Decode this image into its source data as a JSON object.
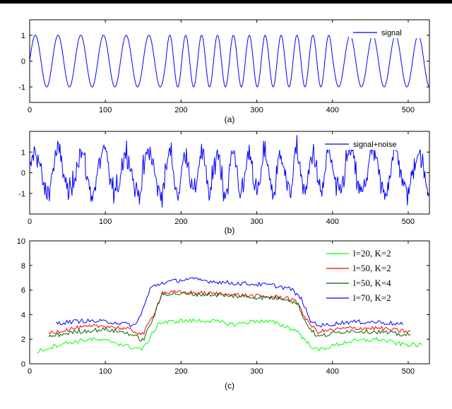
{
  "chart_data": [
    {
      "id": "a",
      "type": "line",
      "caption": "(a)",
      "xlim": [
        0,
        528
      ],
      "ylim": [
        -1.6,
        1.6
      ],
      "xticks": [
        "0",
        "100",
        "200",
        "300",
        "400",
        "500"
      ],
      "yticks": [
        "-1",
        "0",
        "1"
      ],
      "legend_position": "top-right",
      "series": [
        {
          "name": "signal",
          "color": "#0000ff",
          "kind": "sine",
          "amplitude": 1,
          "period_segments": [
            [
              0,
              180,
              30
            ],
            [
              180,
              400,
              21
            ],
            [
              400,
              528,
              30
            ]
          ]
        }
      ]
    },
    {
      "id": "b",
      "type": "line",
      "caption": "(b)",
      "xlim": [
        0,
        528
      ],
      "ylim": [
        -2,
        2
      ],
      "xticks": [
        "0",
        "100",
        "200",
        "300",
        "400",
        "500"
      ],
      "yticks": [
        "-1",
        "0",
        "1"
      ],
      "legend_position": "top-right",
      "series": [
        {
          "name": "signal+noise",
          "color": "#0000ff",
          "kind": "noisy-sine",
          "amplitude": 1,
          "noise_std": 0.45,
          "period_segments": [
            [
              0,
              180,
              30
            ],
            [
              180,
              400,
              21
            ],
            [
              400,
              528,
              30
            ]
          ]
        }
      ]
    },
    {
      "id": "c",
      "type": "line",
      "caption": "(c)",
      "xlim": [
        0,
        528
      ],
      "ylim": [
        0,
        10
      ],
      "xticks": [
        "0",
        "100",
        "200",
        "300",
        "400",
        "500"
      ],
      "yticks": [
        "0",
        "2",
        "4",
        "6",
        "8",
        "10"
      ],
      "legend_position": "top-right",
      "series": [
        {
          "name": "l=20, K=2",
          "color": "#00ff00",
          "x_range": [
            10,
            518
          ],
          "x": [
            10,
            40,
            80,
            110,
            130,
            150,
            160,
            170,
            200,
            240,
            270,
            300,
            320,
            340,
            355,
            365,
            380,
            420,
            460,
            490,
            518
          ],
          "y": [
            1.0,
            1.6,
            2.0,
            1.8,
            1.4,
            1.2,
            2.2,
            3.3,
            3.5,
            3.5,
            3.2,
            3.5,
            3.4,
            3.0,
            2.6,
            1.8,
            1.1,
            1.8,
            2.0,
            1.6,
            1.5
          ]
        },
        {
          "name": "l=50, K=2",
          "color": "#ff0000",
          "x_range": [
            25,
            503
          ],
          "x": [
            25,
            60,
            100,
            130,
            150,
            165,
            175,
            200,
            250,
            300,
            340,
            355,
            365,
            380,
            420,
            460,
            503
          ],
          "y": [
            2.5,
            2.9,
            3.1,
            2.8,
            2.4,
            4.2,
            5.8,
            5.8,
            5.7,
            5.5,
            5.4,
            4.9,
            3.6,
            2.6,
            2.9,
            2.9,
            2.6
          ]
        },
        {
          "name": "l=50, K=4",
          "color": "#006400",
          "x_range": [
            25,
            503
          ],
          "x": [
            25,
            60,
            100,
            130,
            150,
            165,
            175,
            200,
            250,
            300,
            340,
            355,
            365,
            380,
            420,
            460,
            503
          ],
          "y": [
            2.2,
            2.6,
            2.8,
            2.5,
            1.9,
            4.0,
            5.7,
            5.7,
            5.6,
            5.4,
            5.3,
            4.8,
            3.3,
            2.2,
            2.7,
            2.6,
            2.3
          ]
        },
        {
          "name": "l=70, K=2",
          "color": "#0000ff",
          "x_range": [
            35,
            493
          ],
          "x": [
            35,
            70,
            110,
            140,
            150,
            160,
            175,
            210,
            260,
            320,
            345,
            360,
            370,
            385,
            420,
            460,
            493
          ],
          "y": [
            3.3,
            3.5,
            3.4,
            3.1,
            4.5,
            6.2,
            6.6,
            6.9,
            6.6,
            6.4,
            6.1,
            5.2,
            3.5,
            3.1,
            3.4,
            3.4,
            3.2
          ]
        }
      ]
    }
  ]
}
